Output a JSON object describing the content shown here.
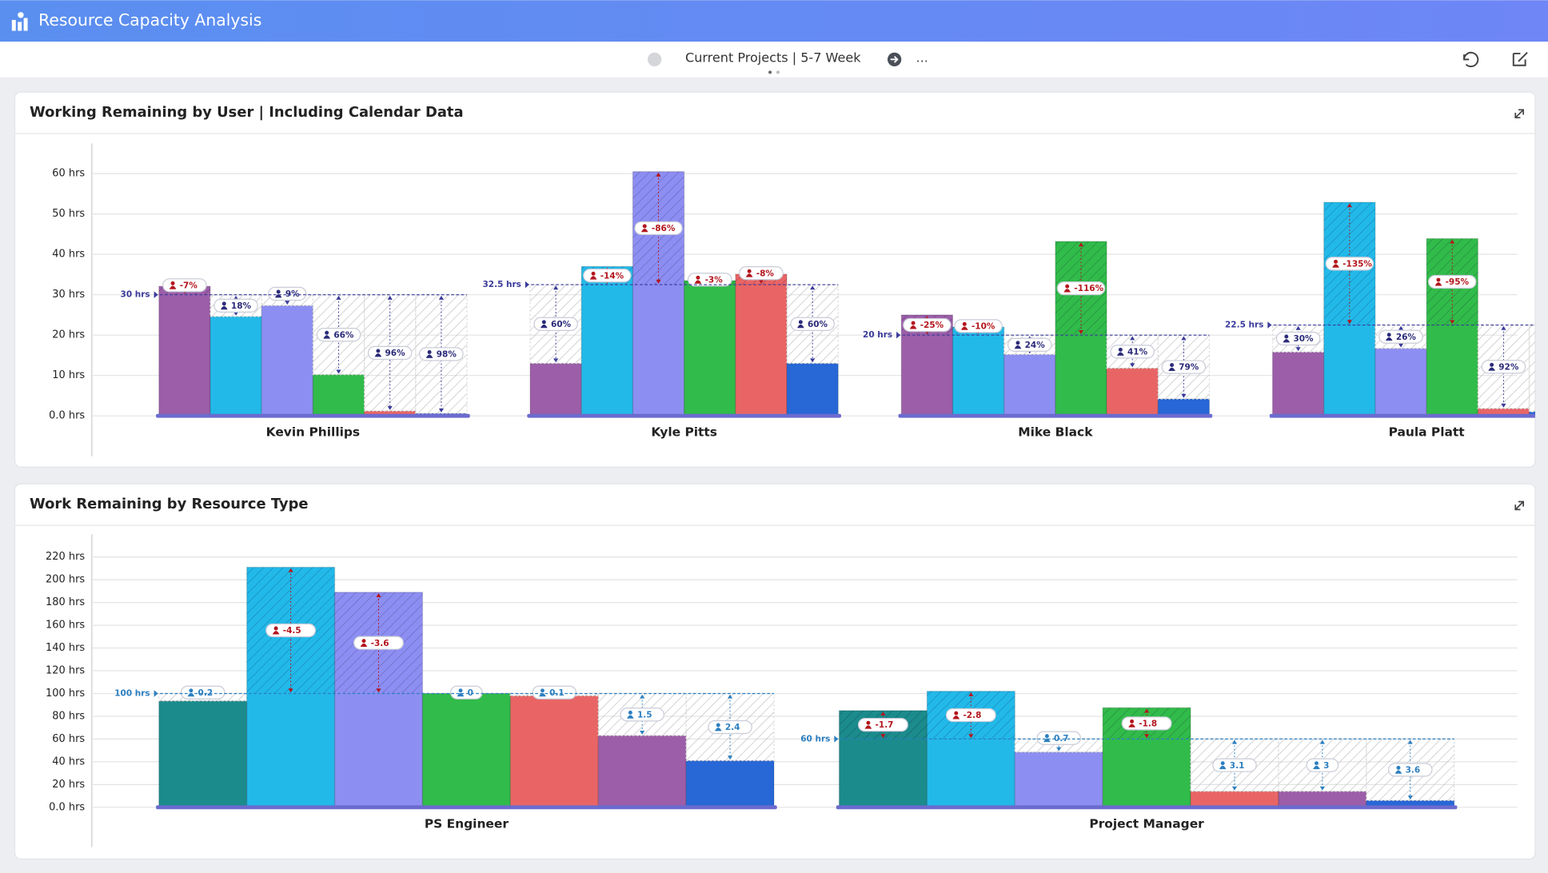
{
  "header": {
    "title": "Resource Capacity Analysis",
    "nav": "Current Projects | 5-7 Week",
    "more": "..."
  },
  "chart_data": [
    {
      "type": "bar",
      "title": "Working Remaining by User | Including Calendar Data",
      "categories": [
        "Kevin Phillips",
        "Kyle Pitts",
        "Mike Black",
        "Paula Platt"
      ],
      "capacity": [
        30,
        32.5,
        20,
        22.5
      ],
      "capacity_labels": [
        "30 hrs",
        "32.5 hrs",
        "20 hrs",
        "22.5 hrs"
      ],
      "ylim": [
        -10,
        67.5
      ],
      "yticks": [
        {
          "value": 0,
          "label": "0.0 hrs"
        },
        {
          "value": 10,
          "label": "10 hrs"
        },
        {
          "value": 20,
          "label": "20 hrs"
        },
        {
          "value": 30,
          "label": "30 hrs"
        },
        {
          "value": 40,
          "label": "40 hrs"
        },
        {
          "value": 50,
          "label": "50 hrs"
        },
        {
          "value": 60,
          "label": "60 hrs"
        }
      ],
      "grid": true,
      "series": [
        {
          "color": "#9c5ea8",
          "values": [
            32.1,
            13,
            25,
            15.8
          ],
          "badges": [
            "-7%",
            "60%",
            "-25%",
            "30%"
          ]
        },
        {
          "color": "#22b9e9",
          "values": [
            24.6,
            37,
            22,
            52.9
          ],
          "badges": [
            "18%",
            "-14%",
            "-10%",
            "-135%"
          ]
        },
        {
          "color": "#8d8ef2",
          "values": [
            27.3,
            60.5,
            15.2,
            16.7
          ],
          "badges": [
            "9%",
            "-86%",
            "24%",
            "26%"
          ]
        },
        {
          "color": "#31bb4a",
          "values": [
            10.2,
            33.5,
            43.2,
            43.9
          ],
          "badges": [
            "66%",
            "-3%",
            "-116%",
            "-95%"
          ]
        },
        {
          "color": "#e96565",
          "values": [
            1.2,
            35.1,
            11.8,
            1.8
          ],
          "badges": [
            "96%",
            "-8%",
            "41%",
            "92%"
          ]
        },
        {
          "color": "#2767d6",
          "values": [
            0.6,
            13,
            4.2,
            1
          ],
          "badges": [
            "98%",
            "60%",
            "79%",
            null
          ]
        }
      ]
    },
    {
      "type": "bar",
      "title": "Work Remaining by Resource Type",
      "categories": [
        "PS Engineer",
        "Project Manager"
      ],
      "capacity": [
        100,
        60
      ],
      "capacity_labels": [
        "100 hrs",
        "60 hrs"
      ],
      "ylim": [
        -35,
        240
      ],
      "yticks": [
        {
          "value": 0,
          "label": "0.0 hrs"
        },
        {
          "value": 20,
          "label": "20 hrs"
        },
        {
          "value": 40,
          "label": "40 hrs"
        },
        {
          "value": 60,
          "label": "60 hrs"
        },
        {
          "value": 80,
          "label": "80 hrs"
        },
        {
          "value": 100,
          "label": "100 hrs"
        },
        {
          "value": 120,
          "label": "120 hrs"
        },
        {
          "value": 140,
          "label": "140 hrs"
        },
        {
          "value": 160,
          "label": "160 hrs"
        },
        {
          "value": 180,
          "label": "180 hrs"
        },
        {
          "value": 200,
          "label": "200 hrs"
        },
        {
          "value": 220,
          "label": "220 hrs"
        }
      ],
      "grid": true,
      "series": [
        {
          "color": "#1b8b8c",
          "values": [
            93.5,
            85
          ],
          "badges": [
            0.2,
            -1.7
          ]
        },
        {
          "color": "#22b9e9",
          "values": [
            211,
            102
          ],
          "badges": [
            -4.5,
            -2.8
          ]
        },
        {
          "color": "#8d8ef2",
          "values": [
            189,
            48.5
          ],
          "badges": [
            -3.6,
            0.7
          ]
        },
        {
          "color": "#31bb4a",
          "values": [
            100,
            87.5
          ],
          "badges": [
            0,
            -1.8
          ]
        },
        {
          "color": "#e96565",
          "values": [
            98,
            14
          ],
          "badges": [
            0.1,
            3.1
          ]
        },
        {
          "color": "#9c5ea8",
          "values": [
            63,
            14
          ],
          "badges": [
            1.5,
            3
          ]
        },
        {
          "color": "#2767d6",
          "values": [
            41,
            6
          ],
          "badges": [
            2.4,
            3.6
          ]
        }
      ]
    }
  ]
}
